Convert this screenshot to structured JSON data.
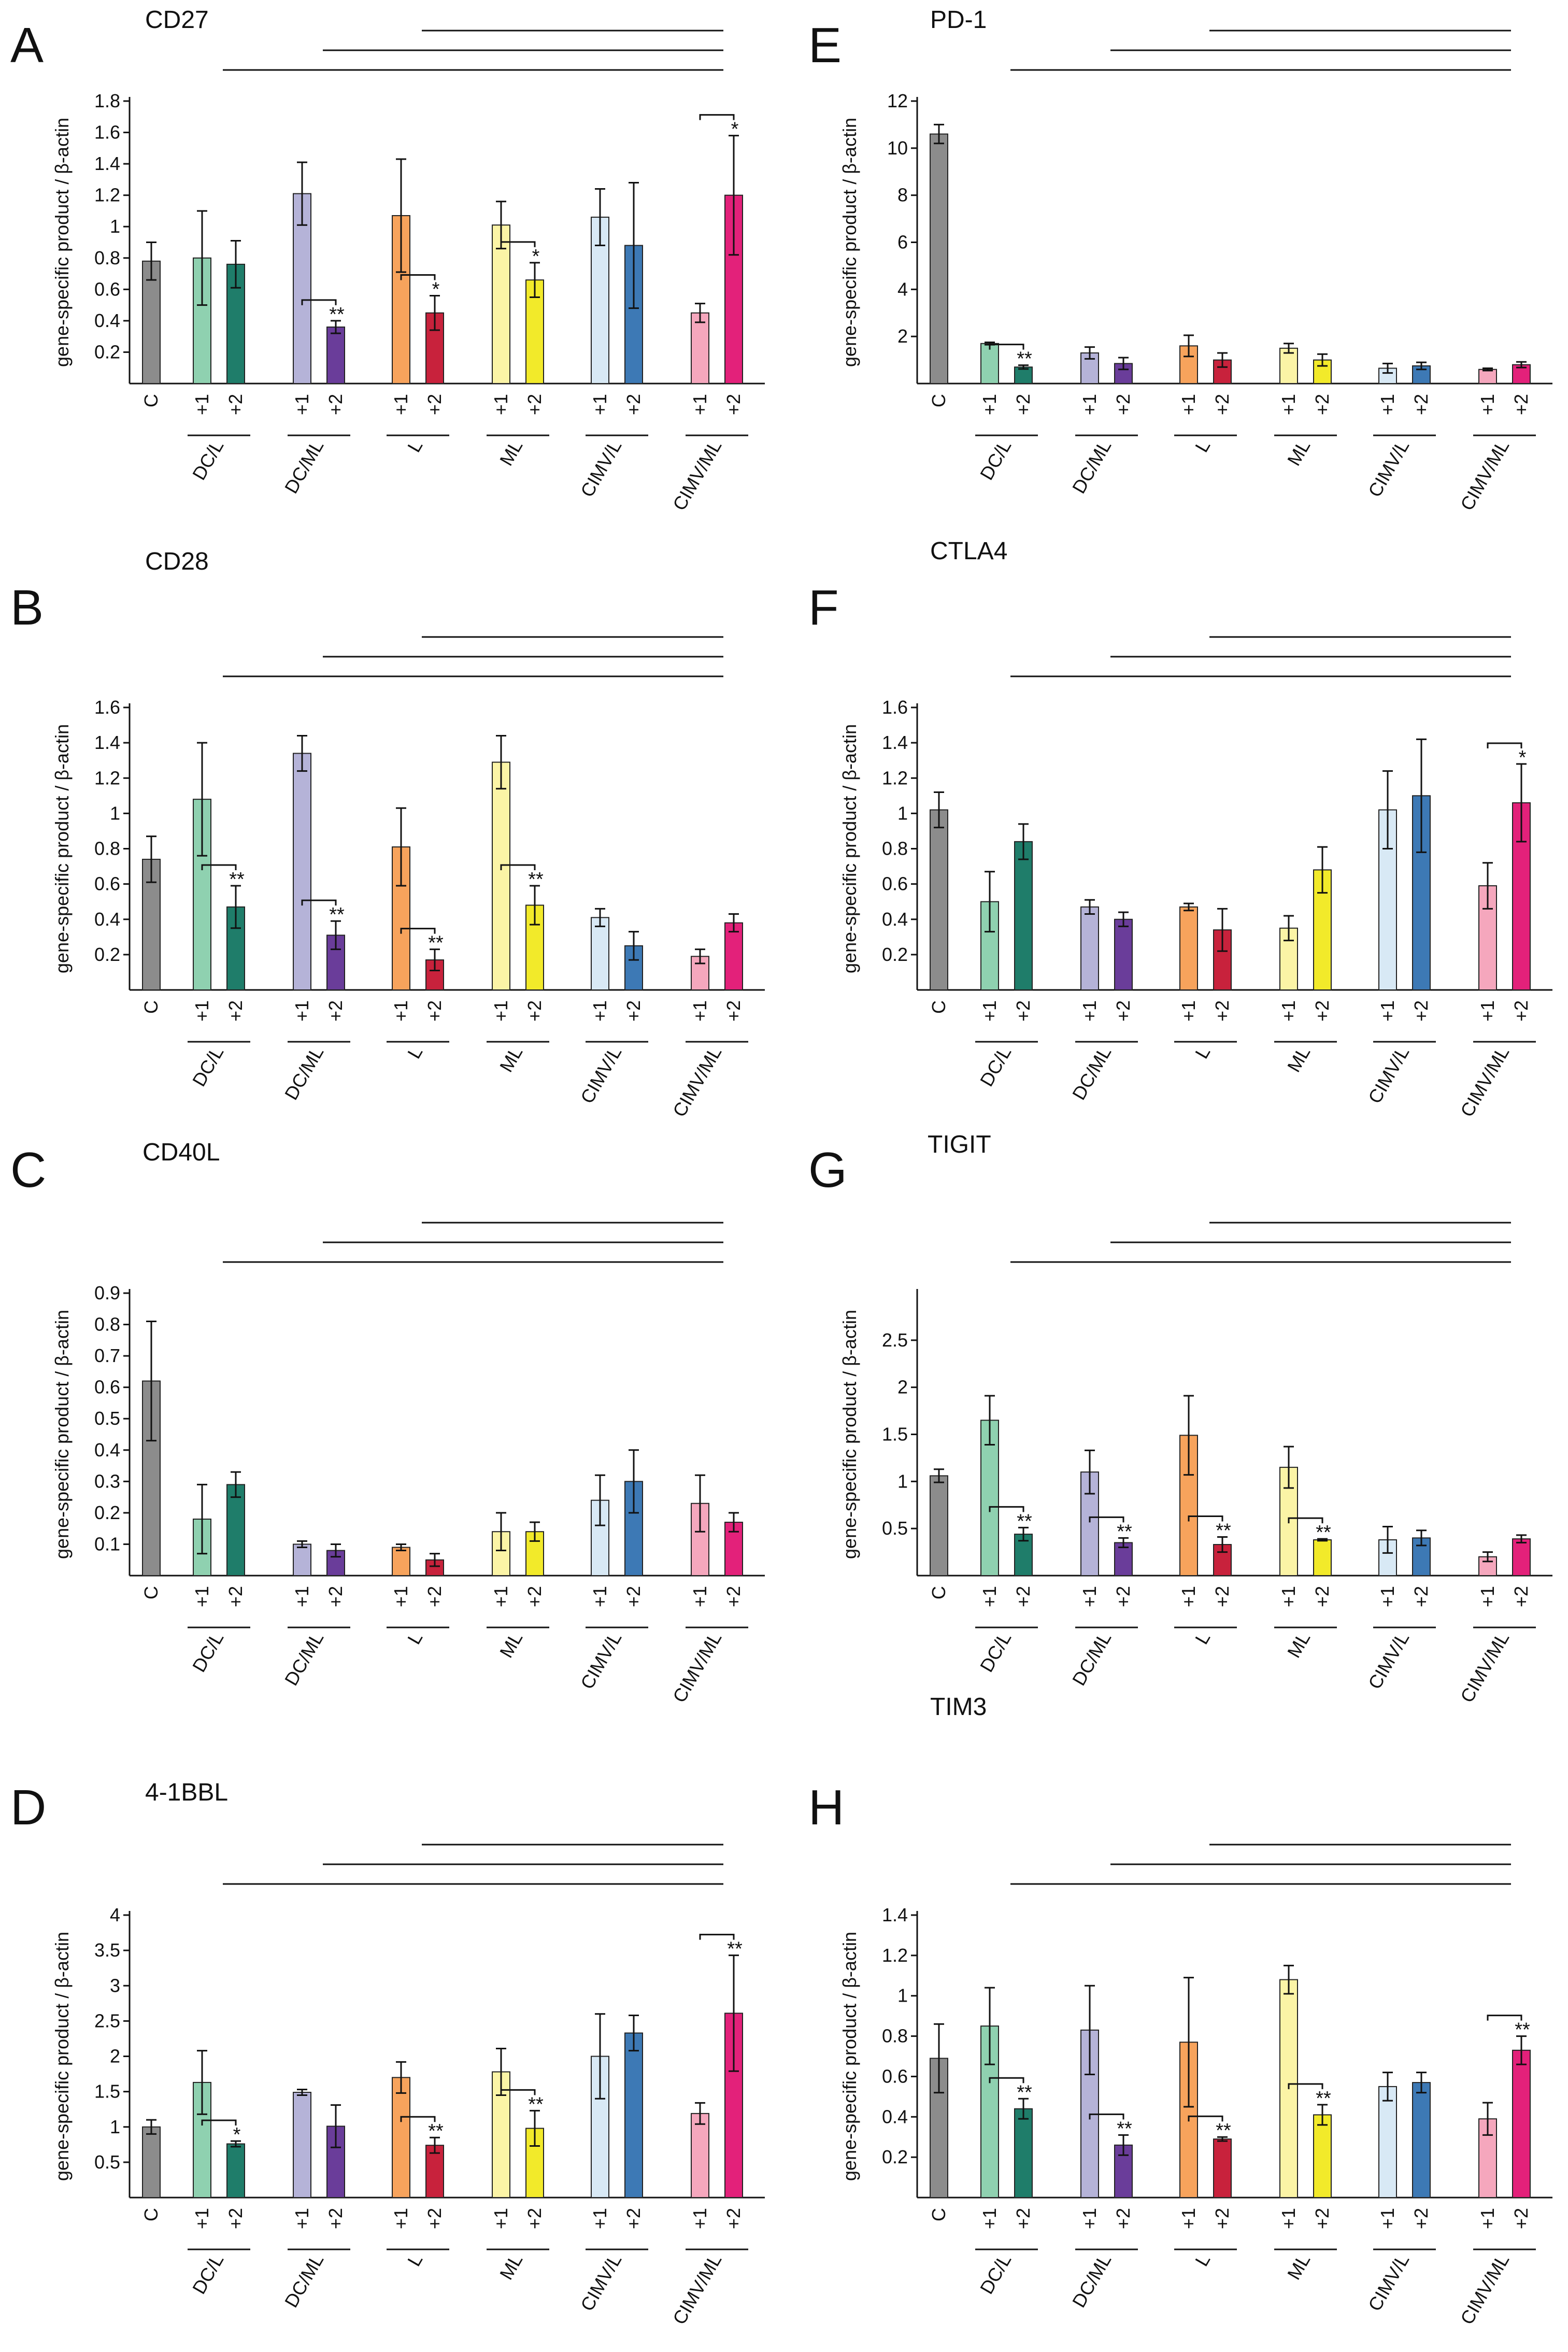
{
  "figure": {
    "ylabel": "gene-specific product / β-actin",
    "group_labels": [
      "DC/L",
      "DC/ML",
      "L",
      "ML",
      "CIMV/L",
      "CIMV/ML"
    ],
    "bar_labels": [
      "C",
      "+1",
      "+2",
      "+1",
      "+2",
      "+1",
      "+2",
      "+1",
      "+2",
      "+1",
      "+2",
      "+1",
      "+2"
    ],
    "colors": [
      "#8c8c8c",
      "#8fd1b0",
      "#1f7d6a",
      "#b5b3d8",
      "#6a3d9a",
      "#f7a35c",
      "#c8223c",
      "#fbf4a6",
      "#f2ea2a",
      "#d8e9f5",
      "#3d79b5",
      "#f5a7bd",
      "#e3217a"
    ]
  },
  "chart_data": [
    {
      "panel": "A",
      "title": "CD27",
      "type": "bar",
      "ylim": [
        0,
        1.8
      ],
      "ticks": [
        0.2,
        0.4,
        0.6,
        0.8,
        1,
        1.2,
        1.4,
        1.6,
        1.8
      ],
      "values": [
        0.78,
        0.8,
        0.76,
        1.21,
        0.36,
        1.07,
        0.45,
        1.01,
        0.66,
        1.06,
        0.88,
        0.45,
        1.2
      ],
      "errors": [
        0.12,
        0.3,
        0.15,
        0.2,
        0.04,
        0.36,
        0.11,
        0.15,
        0.11,
        0.18,
        0.4,
        0.06,
        0.38
      ],
      "stars": [
        "",
        "",
        "",
        "",
        "**",
        "",
        "*",
        "",
        "*",
        "",
        "",
        "",
        "*"
      ]
    },
    {
      "panel": "B",
      "title": "CD28",
      "type": "bar",
      "ylim": [
        0,
        1.6
      ],
      "ticks": [
        0.2,
        0.4,
        0.6,
        0.8,
        1,
        1.2,
        1.4,
        1.6
      ],
      "values": [
        0.74,
        1.08,
        0.47,
        1.34,
        0.31,
        0.81,
        0.17,
        1.29,
        0.48,
        0.41,
        0.25,
        0.19,
        0.38
      ],
      "errors": [
        0.13,
        0.32,
        0.12,
        0.1,
        0.08,
        0.22,
        0.06,
        0.15,
        0.11,
        0.05,
        0.08,
        0.04,
        0.05
      ],
      "stars": [
        "",
        "",
        "**",
        "",
        "**",
        "",
        "**",
        "",
        "**",
        "",
        "",
        "",
        ""
      ]
    },
    {
      "panel": "C",
      "title": "CD40L",
      "type": "bar",
      "ylim": [
        0,
        0.9
      ],
      "ticks": [
        0.1,
        0.2,
        0.3,
        0.4,
        0.5,
        0.6,
        0.7,
        0.8,
        0.9
      ],
      "values": [
        0.62,
        0.18,
        0.29,
        0.1,
        0.08,
        0.09,
        0.05,
        0.14,
        0.14,
        0.24,
        0.3,
        0.23,
        0.17
      ],
      "errors": [
        0.19,
        0.11,
        0.04,
        0.01,
        0.02,
        0.01,
        0.02,
        0.06,
        0.03,
        0.08,
        0.1,
        0.09,
        0.03
      ],
      "stars": [
        "",
        "",
        "",
        "",
        "",
        "",
        "",
        "",
        "",
        "",
        "",
        "",
        ""
      ]
    },
    {
      "panel": "D",
      "title": "4-1BBL",
      "type": "bar",
      "ylim": [
        0,
        4
      ],
      "ticks": [
        0.5,
        1,
        1.5,
        2,
        2.5,
        3,
        3.5,
        4
      ],
      "values": [
        1.0,
        1.63,
        0.76,
        1.49,
        1.01,
        1.7,
        0.74,
        1.78,
        0.98,
        2.0,
        2.33,
        1.19,
        2.61
      ],
      "errors": [
        0.1,
        0.45,
        0.04,
        0.04,
        0.3,
        0.22,
        0.11,
        0.33,
        0.25,
        0.6,
        0.25,
        0.15,
        0.82
      ],
      "stars": [
        "",
        "",
        "*",
        "",
        "",
        "",
        "**",
        "",
        "**",
        "",
        "",
        "",
        "**"
      ]
    },
    {
      "panel": "E",
      "title": "PD-1",
      "type": "bar",
      "ylim": [
        0,
        12
      ],
      "ticks": [
        2,
        4,
        6,
        8,
        10,
        12
      ],
      "values": [
        10.6,
        1.7,
        0.7,
        1.3,
        0.85,
        1.6,
        1.0,
        1.5,
        1.0,
        0.65,
        0.75,
        0.6,
        0.8
      ],
      "errors": [
        0.4,
        0.05,
        0.08,
        0.25,
        0.25,
        0.45,
        0.3,
        0.2,
        0.25,
        0.2,
        0.15,
        0.05,
        0.12
      ],
      "stars": [
        "",
        "",
        "**",
        "",
        "",
        "",
        "",
        "",
        "",
        "",
        "",
        "",
        ""
      ]
    },
    {
      "panel": "F",
      "title": "CTLA4",
      "type": "bar",
      "ylim": [
        0,
        1.6
      ],
      "ticks": [
        0.2,
        0.4,
        0.6,
        0.8,
        1,
        1.2,
        1.4,
        1.6
      ],
      "values": [
        1.02,
        0.5,
        0.84,
        0.47,
        0.4,
        0.47,
        0.34,
        0.35,
        0.68,
        1.02,
        1.1,
        0.59,
        1.06
      ],
      "errors": [
        0.1,
        0.17,
        0.1,
        0.04,
        0.04,
        0.02,
        0.12,
        0.07,
        0.13,
        0.22,
        0.32,
        0.13,
        0.22
      ],
      "stars": [
        "",
        "",
        "",
        "",
        "",
        "",
        "",
        "",
        "",
        "",
        "",
        "",
        "*"
      ]
    },
    {
      "panel": "G",
      "title": "TIGIT",
      "type": "bar",
      "ylim": [
        0,
        3
      ],
      "ticks": [
        0.5,
        1,
        1.5,
        2,
        2.5
      ],
      "values": [
        1.06,
        1.65,
        0.44,
        1.1,
        0.35,
        1.49,
        0.33,
        1.15,
        0.38,
        0.38,
        0.4,
        0.2,
        0.39
      ],
      "errors": [
        0.07,
        0.26,
        0.07,
        0.23,
        0.05,
        0.42,
        0.08,
        0.22,
        0.01,
        0.14,
        0.08,
        0.05,
        0.04
      ],
      "stars": [
        "",
        "",
        "**",
        "",
        "**",
        "",
        "**",
        "",
        "**",
        "",
        "",
        "",
        ""
      ]
    },
    {
      "panel": "H",
      "title": "TIM3",
      "type": "bar",
      "ylim": [
        0,
        1.4
      ],
      "ticks": [
        0.2,
        0.4,
        0.6,
        0.8,
        1,
        1.2,
        1.4
      ],
      "values": [
        0.69,
        0.85,
        0.44,
        0.83,
        0.26,
        0.77,
        0.29,
        1.08,
        0.41,
        0.55,
        0.57,
        0.39,
        0.73
      ],
      "errors": [
        0.17,
        0.19,
        0.05,
        0.22,
        0.05,
        0.32,
        0.01,
        0.07,
        0.05,
        0.07,
        0.05,
        0.08,
        0.07
      ],
      "stars": [
        "",
        "",
        "**",
        "",
        "**",
        "",
        "**",
        "",
        "**",
        "",
        "",
        "",
        "**"
      ]
    }
  ]
}
